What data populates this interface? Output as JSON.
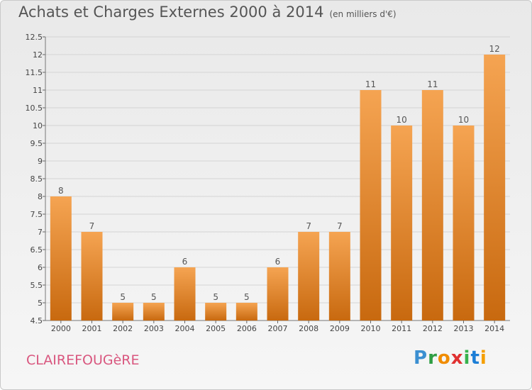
{
  "header": {
    "title": "Achats et Charges Externes 2000 à 2014",
    "unit": "(en milliers d'€)"
  },
  "footer": {
    "commune": "CLAIREFOUGèRE",
    "logo_letters": [
      {
        "ch": "P",
        "color": "#3b8fd1"
      },
      {
        "ch": "r",
        "color": "#2f9e44"
      },
      {
        "ch": "o",
        "color": "#f08c00"
      },
      {
        "ch": "x",
        "color": "#e03131"
      },
      {
        "ch": "i",
        "color": "#37b24d"
      },
      {
        "ch": "t",
        "color": "#1c7ed6"
      },
      {
        "ch": "i",
        "color": "#f59f00"
      }
    ]
  },
  "chart_data": {
    "type": "bar",
    "title": "Achats et Charges Externes 2000 à 2014",
    "categories": [
      "2000",
      "2001",
      "2002",
      "2003",
      "2004",
      "2005",
      "2006",
      "2007",
      "2008",
      "2009",
      "2010",
      "2011",
      "2012",
      "2013",
      "2014"
    ],
    "values": [
      8,
      7,
      5,
      5,
      6,
      5,
      5,
      6,
      7,
      7,
      11,
      10,
      11,
      10,
      12
    ],
    "yticks": [
      "4.5",
      "5",
      "5.5",
      "6",
      "6.5",
      "7",
      "7.5",
      "8",
      "8.5",
      "9",
      "9.5",
      "10",
      "10.5",
      "11",
      "11.5",
      "12",
      "12.5"
    ],
    "ylim": [
      4.5,
      12.5
    ],
    "grid": true,
    "bar_color_top": "#f5a452",
    "bar_color_bottom": "#c8690f"
  }
}
